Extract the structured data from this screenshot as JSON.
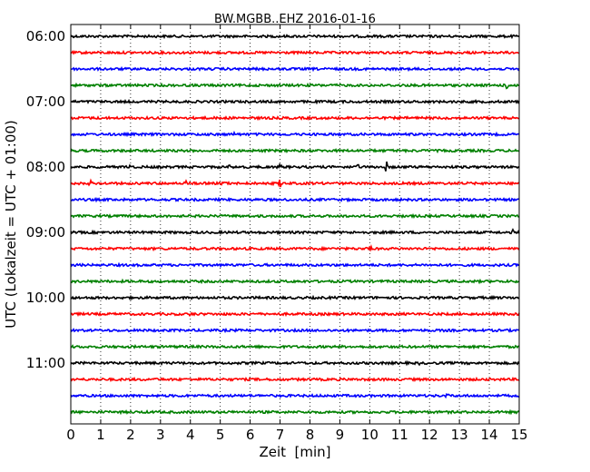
{
  "chart_data": {
    "type": "line",
    "title": "BW.MGBB..EHZ 2016-01-16",
    "xlabel": "Zeit  [min]",
    "ylabel": "UTC (Lokalzeit = UTC + 01:00)",
    "xlim": [
      0,
      15
    ],
    "x_ticks": [
      "0",
      "1",
      "2",
      "3",
      "4",
      "5",
      "6",
      "7",
      "8",
      "9",
      "10",
      "11",
      "12",
      "13",
      "14",
      "15"
    ],
    "y_tick_labels": [
      "06:00",
      "07:00",
      "08:00",
      "09:00",
      "10:00",
      "11:00"
    ],
    "grid": "vertical dotted lines at each minute",
    "colors": [
      "#000000",
      "#ff0000",
      "#0000ff",
      "#008000"
    ],
    "traces_per_hour": 4,
    "first_trace_start": "06:00",
    "last_trace_start": "11:45",
    "events": [
      {
        "trace": "06:45",
        "x": 14.6,
        "amp": 6
      },
      {
        "trace": "07:30",
        "x": 5.5,
        "amp": 4
      },
      {
        "trace": "08:00",
        "x": 10.55,
        "amp": 7
      },
      {
        "trace": "08:00",
        "x": 2.0,
        "amp": 3
      },
      {
        "trace": "08:00",
        "x": 5.3,
        "amp": 3
      },
      {
        "trace": "08:00",
        "x": 7.0,
        "amp": 4
      },
      {
        "trace": "08:00",
        "x": 9.6,
        "amp": 3
      },
      {
        "trace": "08:15",
        "x": 3.9,
        "amp": 5
      },
      {
        "trace": "08:15",
        "x": 5.1,
        "amp": 3
      },
      {
        "trace": "08:15",
        "x": 7.0,
        "amp": 7
      },
      {
        "trace": "08:15",
        "x": 0.65,
        "amp": 3
      },
      {
        "trace": "09:15",
        "x": 10.0,
        "amp": 3
      },
      {
        "trace": "09:00",
        "x": 14.8,
        "amp": 3
      },
      {
        "trace": "10:15",
        "x": 4.0,
        "amp": 3
      },
      {
        "trace": "10:45",
        "x": 3.7,
        "amp": 3
      },
      {
        "trace": "11:30",
        "x": 12.6,
        "amp": 2
      },
      {
        "trace": "11:00",
        "x": 11.7,
        "amp": 3
      }
    ]
  }
}
